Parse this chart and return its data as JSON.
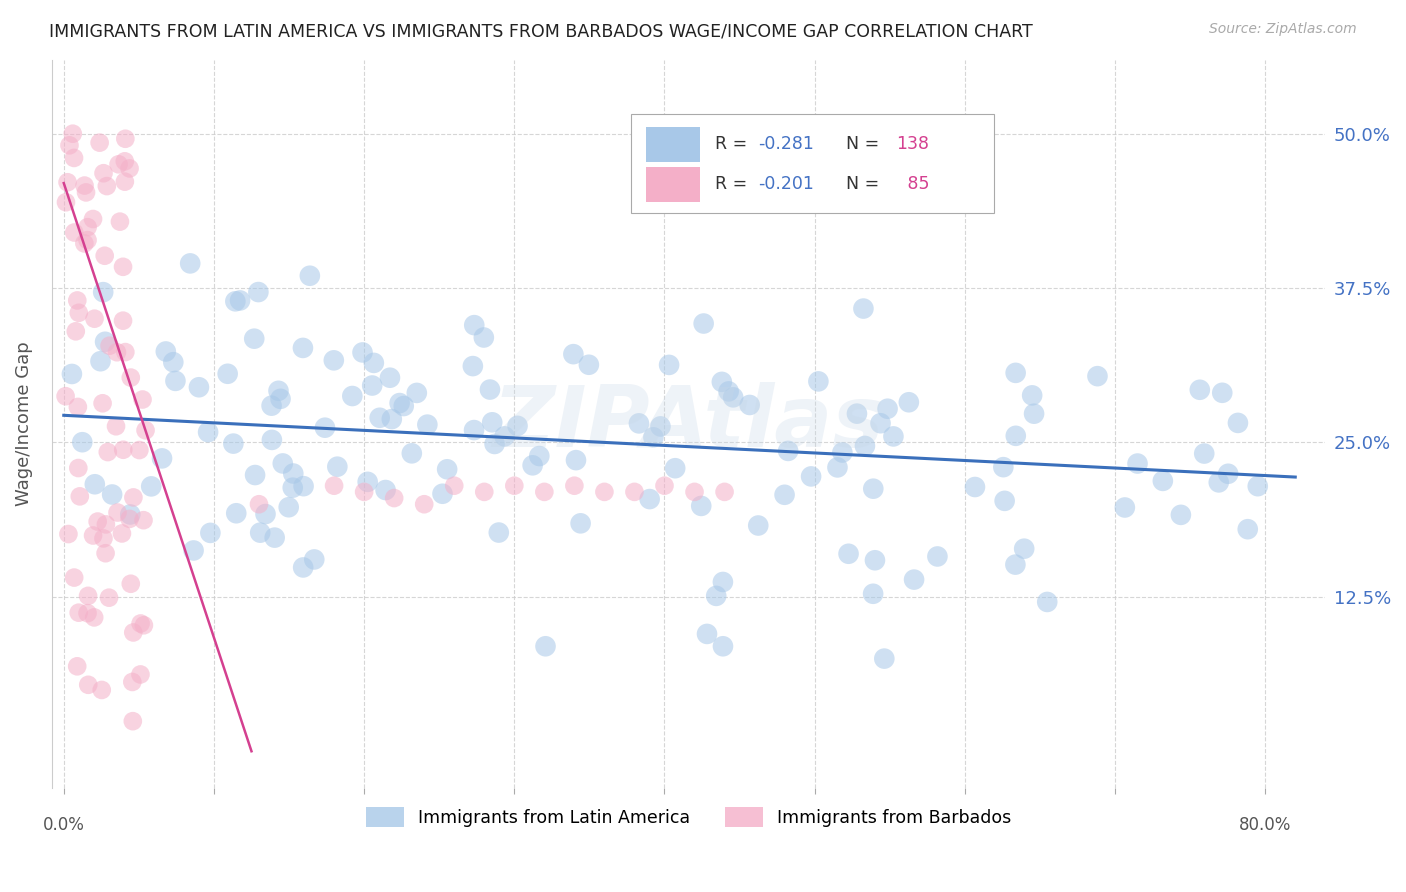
{
  "title": "IMMIGRANTS FROM LATIN AMERICA VS IMMIGRANTS FROM BARBADOS WAGE/INCOME GAP CORRELATION CHART",
  "source": "Source: ZipAtlas.com",
  "ylabel": "Wage/Income Gap",
  "xlim": [
    -0.008,
    0.84
  ],
  "ylim": [
    -0.03,
    0.56
  ],
  "ytick_vals": [
    0.125,
    0.25,
    0.375,
    0.5
  ],
  "ytick_labels": [
    "12.5%",
    "25.0%",
    "37.5%",
    "50.0%"
  ],
  "blue_color": "#a8c8e8",
  "pink_color": "#f4afc8",
  "blue_line_color": "#3a6fbb",
  "pink_line_color": "#d44090",
  "blue_R": -0.281,
  "blue_N": 138,
  "pink_R": -0.201,
  "pink_N": 85,
  "watermark": "ZIPAtlas",
  "background_color": "#ffffff",
  "grid_color": "#cccccc",
  "blue_line_start_y": 0.272,
  "blue_line_end_y": 0.222,
  "pink_line_start_x": 0.0,
  "pink_line_start_y": 0.46,
  "pink_line_end_x": 0.125,
  "pink_line_end_y": 0.0
}
